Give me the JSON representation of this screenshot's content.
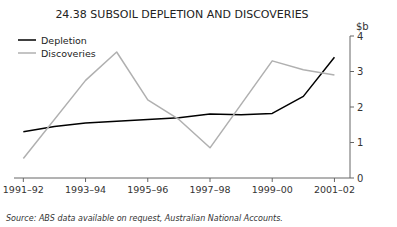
{
  "chart_data": {
    "type": "line",
    "title": "24.38   SUBSOIL DEPLETION AND DISCOVERIES",
    "y_label": "$b",
    "source": "Source: ABS data available on request, Australian National Accounts.",
    "xlim": [
      -0.3,
      10.5
    ],
    "xticks": [
      {
        "value": 0,
        "label": "1991–92"
      },
      {
        "value": 2,
        "label": "1993–94"
      },
      {
        "value": 4,
        "label": "1995–96"
      },
      {
        "value": 6,
        "label": "1997–98"
      },
      {
        "value": 8,
        "label": "1999–00"
      },
      {
        "value": 10,
        "label": "2001–02"
      }
    ],
    "ylim": [
      0,
      4
    ],
    "yticks": [
      0,
      1,
      2,
      3,
      4
    ],
    "grid": false,
    "legend": "upper left",
    "series": [
      {
        "name": "Depletion",
        "color": "#000000",
        "x": [
          0,
          1,
          2,
          3,
          4,
          5,
          6,
          7,
          8,
          9,
          10
        ],
        "values": [
          1.3,
          1.45,
          1.55,
          1.6,
          1.65,
          1.7,
          1.8,
          1.78,
          1.82,
          2.3,
          3.4
        ]
      },
      {
        "name": "Discoveries",
        "color": "#b0b0b0",
        "x": [
          0,
          2,
          3,
          4,
          5,
          6,
          8,
          9,
          10
        ],
        "values": [
          0.55,
          2.75,
          3.55,
          2.2,
          1.65,
          0.85,
          3.3,
          3.05,
          2.9
        ]
      }
    ]
  }
}
